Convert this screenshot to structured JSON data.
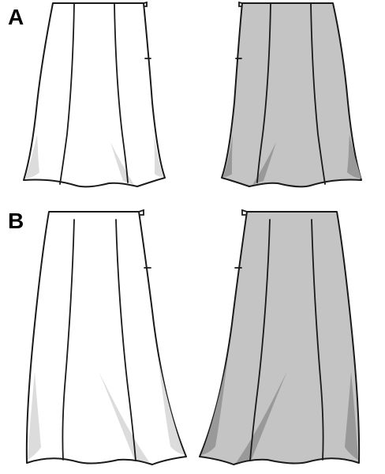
{
  "views": {
    "a": {
      "label": "A"
    },
    "b": {
      "label": "B"
    }
  },
  "colors": {
    "outline": "#1a1a1a",
    "front_fill": "#ffffff",
    "front_shade": "#dcdcdc",
    "back_fill": "#c4c4c4",
    "back_shade": "#999999",
    "background": "#ffffff"
  }
}
